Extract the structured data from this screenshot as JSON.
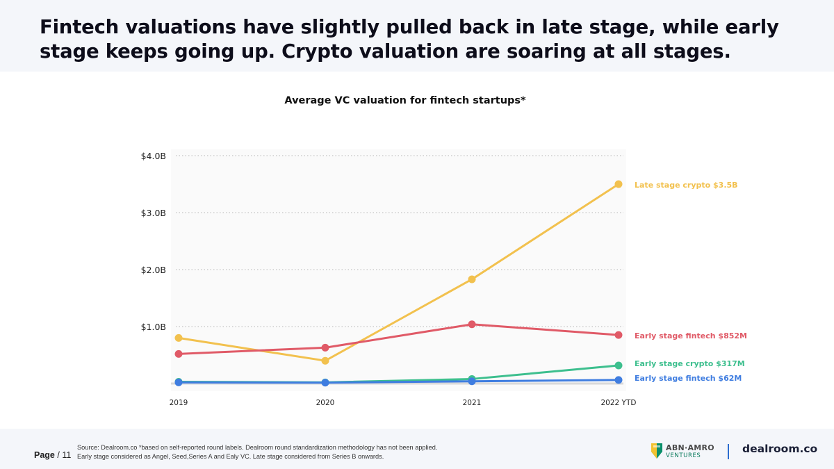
{
  "headline": "Fintech valuations have slightly pulled back in late stage, while early stage keeps going up. Crypto valuation are soaring at all stages.",
  "footer": {
    "page_label": "Page",
    "page_number": "/ 11",
    "source_line1": "Source: Dealroom.co  *based on self-reported round labels. Dealroom round standardization methodology has not been applied.",
    "source_line2": "Early stage considered as Angel, Seed,Series A and Ealy VC. Late stage considered from Series B onwards."
  },
  "logos": {
    "abn_name": "ABN·AMRO",
    "abn_sub": "VENTURES",
    "dealroom": "dealroom.co"
  },
  "colors": {
    "late_crypto": "#f2c14e",
    "early_fintech_red": "#e05a67",
    "early_crypto": "#3dbf8e",
    "early_fintech_blue": "#3f7de0"
  },
  "chart_data": {
    "type": "line",
    "title": "Average VC valuation for fintech startups*",
    "x": [
      "2019",
      "2020",
      "2021",
      "2022 YTD"
    ],
    "yticks": [
      {
        "value": 1.0,
        "label": "$1.0B"
      },
      {
        "value": 2.0,
        "label": "$2.0B"
      },
      {
        "value": 3.0,
        "label": "$3.0B"
      },
      {
        "value": 4.0,
        "label": "$4.0B"
      }
    ],
    "ylim": [
      0,
      4.0
    ],
    "yunit": "billion USD",
    "grid": true,
    "series": [
      {
        "name": "Late stage crypto",
        "value_label": "$3.5B",
        "color": "#f2c14e",
        "values": [
          0.8,
          0.4,
          1.83,
          3.5
        ]
      },
      {
        "name": "Early stage fintech",
        "value_label": "$852M",
        "color": "#e05a67",
        "values": [
          0.52,
          0.63,
          1.04,
          0.852
        ]
      },
      {
        "name": "Early stage crypto",
        "value_label": "$317M",
        "color": "#3dbf8e",
        "values": [
          0.03,
          0.02,
          0.08,
          0.317
        ]
      },
      {
        "name": "Early stage fintech",
        "value_label": "$62M",
        "color": "#3f7de0",
        "values": [
          0.02,
          0.015,
          0.04,
          0.062
        ]
      }
    ]
  }
}
